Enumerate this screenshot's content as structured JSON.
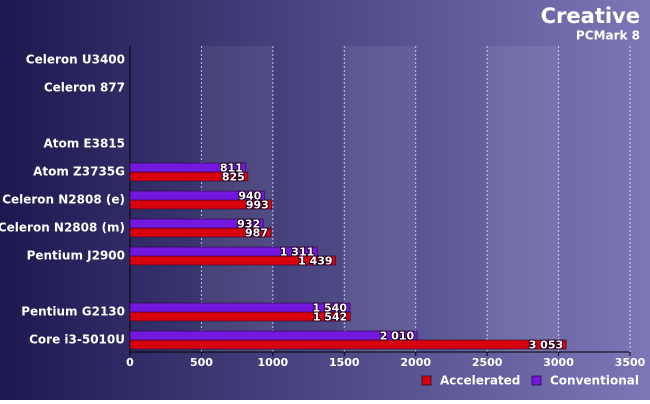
{
  "chart_data": {
    "type": "hbar",
    "title": "Creative",
    "subtitle": "PCMark 8",
    "categories": [
      "Celeron U3400",
      "Celeron 877",
      null,
      "Atom E3815",
      "Atom Z3735G",
      "Celeron N2808 (e)",
      "Celeron N2808 (m)",
      "Pentium J2900",
      null,
      "Pentium G2130",
      "Core i3-5010U"
    ],
    "series": [
      {
        "name": "Accelerated",
        "color": "#d8000c",
        "values": [
          null,
          null,
          null,
          null,
          825,
          993,
          987,
          1439,
          null,
          1542,
          3053
        ],
        "value_labels": [
          null,
          null,
          null,
          null,
          "825",
          "993",
          "987",
          "1 439",
          null,
          "1 542",
          "3 053"
        ]
      },
      {
        "name": "Conventional",
        "color": "#7418e0",
        "values": [
          null,
          null,
          null,
          null,
          811,
          940,
          932,
          1311,
          null,
          1540,
          2010
        ],
        "value_labels": [
          null,
          null,
          null,
          null,
          "811",
          "940",
          "932",
          "1 311",
          null,
          "1 540",
          "2 010"
        ]
      }
    ],
    "xlim": [
      0,
      3500
    ],
    "xticks": [
      0,
      500,
      1000,
      1500,
      2000,
      2500,
      3000,
      3500
    ],
    "grid": true,
    "legend": "bottom-right"
  }
}
